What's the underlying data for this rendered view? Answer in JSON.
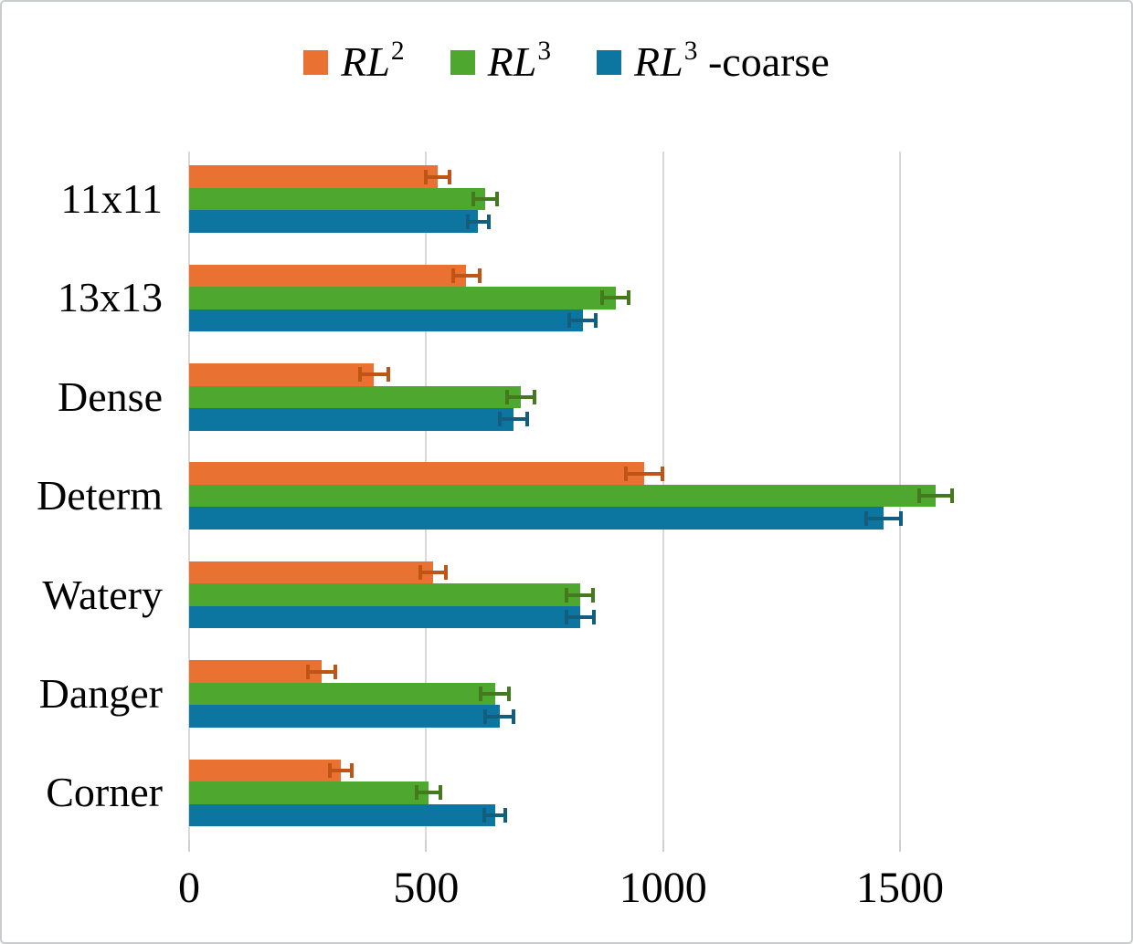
{
  "chart_data": {
    "type": "bar",
    "orientation": "horizontal",
    "title": "",
    "xlabel": "",
    "ylabel": "",
    "grid": true,
    "legend_position": "top",
    "error_bars": true,
    "xticks": [
      0,
      500,
      1000,
      1500
    ],
    "xtick_labels": [
      "0",
      "500",
      "1000",
      "1500"
    ],
    "xlim": [
      0,
      1900
    ],
    "categories": [
      "11x11",
      "13x13",
      "Dense",
      "Determ",
      "Watery",
      "Danger",
      "Corner"
    ],
    "series": [
      {
        "name": "RL^2",
        "label_base": "RL",
        "label_sup": "2",
        "label_suffix": "",
        "color": "#E97132",
        "error_color": "#BE5517",
        "values": [
          525,
          585,
          390,
          960,
          515,
          280,
          320
        ],
        "errors": [
          25,
          28,
          30,
          38,
          27,
          29,
          23
        ]
      },
      {
        "name": "RL^3",
        "label_base": "RL",
        "label_sup": "3",
        "label_suffix": "",
        "color": "#4EA72E",
        "error_color": "#44791D",
        "values": [
          625,
          900,
          700,
          1575,
          825,
          645,
          505
        ],
        "errors": [
          25,
          28,
          29,
          35,
          28,
          30,
          25
        ]
      },
      {
        "name": "RL^3-coarse",
        "label_base": "RL",
        "label_sup": "3",
        "label_suffix": " -coarse",
        "color": "#0C76A1",
        "error_color": "#135E7E",
        "values": [
          610,
          830,
          685,
          1465,
          825,
          655,
          645
        ],
        "errors": [
          22,
          28,
          29,
          37,
          29,
          30,
          23
        ]
      }
    ]
  }
}
